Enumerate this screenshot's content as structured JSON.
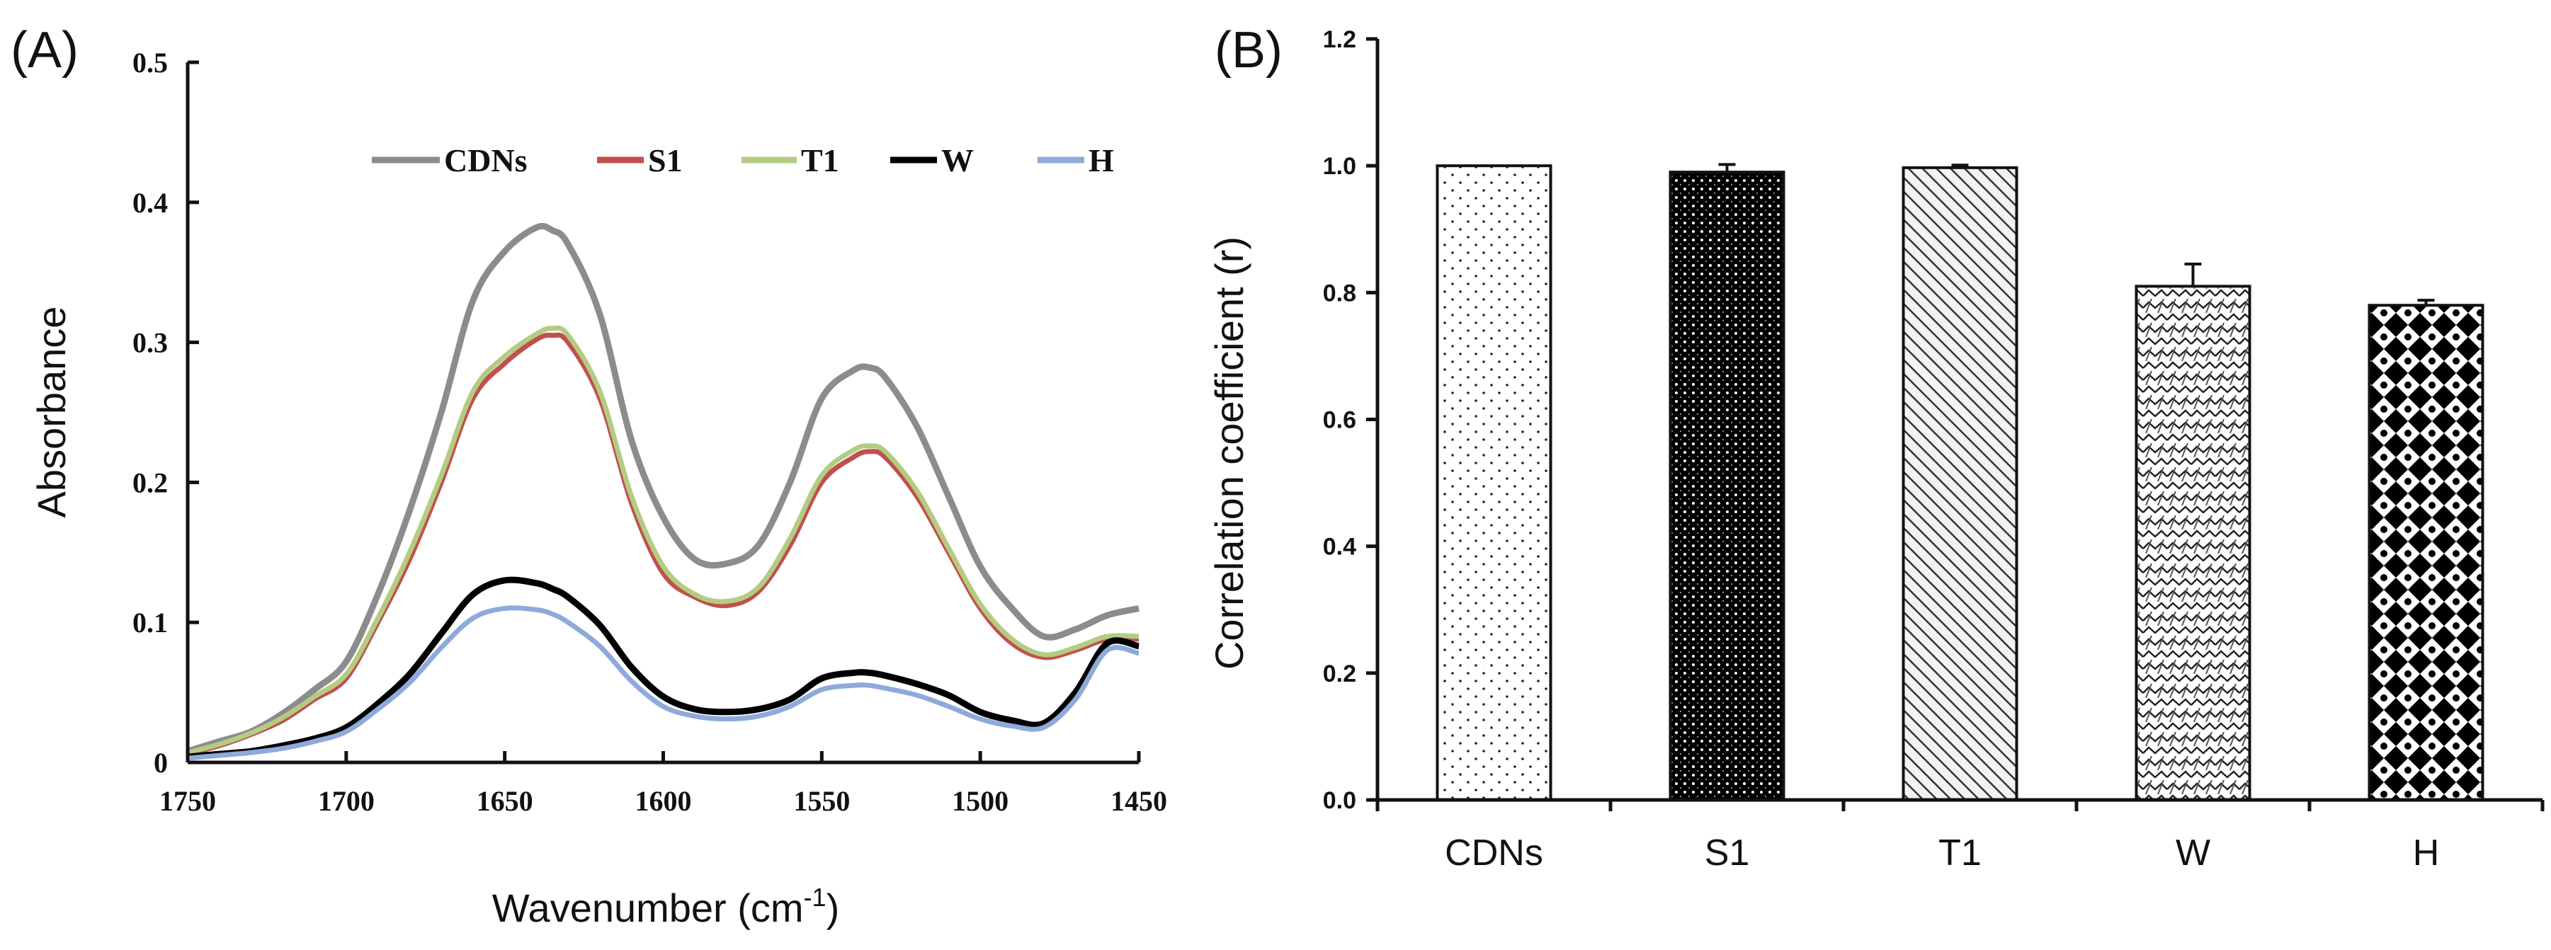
{
  "chart_data": [
    {
      "panel": "(A)",
      "type": "line",
      "xlabel": "Wavenumber (cm",
      "xlabel_sup": "-1",
      "xlabel_end": ")",
      "ylabel": "Absorbance",
      "xlim": [
        1750,
        1450
      ],
      "ylim": [
        0,
        0.5
      ],
      "xticks": [
        1750,
        1700,
        1650,
        1600,
        1550,
        1500,
        1450
      ],
      "xtick_labels": [
        "1750",
        "1700",
        "1650",
        "1600",
        "1550",
        "1500",
        "1450"
      ],
      "yticks": [
        0,
        0.1,
        0.2,
        0.3,
        0.4,
        0.5
      ],
      "ytick_labels": [
        "0",
        "0.1",
        "0.2",
        "0.3",
        "0.4",
        "0.5"
      ],
      "legend_position": "top",
      "x": [
        1750,
        1740,
        1730,
        1720,
        1710,
        1700,
        1690,
        1680,
        1670,
        1660,
        1650,
        1640,
        1635,
        1630,
        1620,
        1610,
        1600,
        1590,
        1580,
        1570,
        1560,
        1550,
        1540,
        1535,
        1530,
        1520,
        1510,
        1500,
        1490,
        1480,
        1470,
        1460,
        1450
      ],
      "series": [
        {
          "name": "CDNs",
          "color": "#8c8c8c",
          "values": [
            0.008,
            0.015,
            0.022,
            0.035,
            0.052,
            0.072,
            0.12,
            0.18,
            0.25,
            0.33,
            0.365,
            0.382,
            0.38,
            0.37,
            0.32,
            0.23,
            0.175,
            0.145,
            0.142,
            0.155,
            0.2,
            0.26,
            0.28,
            0.282,
            0.275,
            0.24,
            0.19,
            0.14,
            0.11,
            0.09,
            0.095,
            0.105,
            0.11
          ]
        },
        {
          "name": "S1",
          "color": "#c0504d",
          "values": [
            0.006,
            0.012,
            0.02,
            0.03,
            0.045,
            0.06,
            0.1,
            0.145,
            0.2,
            0.26,
            0.285,
            0.302,
            0.305,
            0.3,
            0.26,
            0.185,
            0.135,
            0.118,
            0.112,
            0.122,
            0.155,
            0.2,
            0.218,
            0.222,
            0.218,
            0.19,
            0.15,
            0.11,
            0.085,
            0.075,
            0.08,
            0.088,
            0.088
          ]
        },
        {
          "name": "T1",
          "color": "#b3cc82",
          "values": [
            0.007,
            0.013,
            0.021,
            0.032,
            0.047,
            0.063,
            0.103,
            0.15,
            0.205,
            0.265,
            0.29,
            0.306,
            0.31,
            0.305,
            0.265,
            0.19,
            0.14,
            0.12,
            0.115,
            0.125,
            0.16,
            0.205,
            0.223,
            0.226,
            0.222,
            0.194,
            0.153,
            0.113,
            0.088,
            0.077,
            0.082,
            0.09,
            0.09
          ]
        },
        {
          "name": "W",
          "color": "#000000",
          "values": [
            0.004,
            0.006,
            0.008,
            0.012,
            0.017,
            0.025,
            0.042,
            0.063,
            0.092,
            0.12,
            0.13,
            0.128,
            0.124,
            0.118,
            0.098,
            0.068,
            0.047,
            0.038,
            0.036,
            0.038,
            0.045,
            0.06,
            0.064,
            0.064,
            0.062,
            0.056,
            0.048,
            0.036,
            0.03,
            0.028,
            0.05,
            0.085,
            0.083
          ]
        },
        {
          "name": "H",
          "color": "#8eaadb",
          "values": [
            0.003,
            0.005,
            0.007,
            0.01,
            0.015,
            0.022,
            0.038,
            0.057,
            0.082,
            0.103,
            0.11,
            0.109,
            0.106,
            0.1,
            0.083,
            0.058,
            0.04,
            0.033,
            0.031,
            0.033,
            0.04,
            0.052,
            0.055,
            0.055,
            0.053,
            0.048,
            0.04,
            0.031,
            0.026,
            0.025,
            0.045,
            0.08,
            0.078
          ]
        }
      ]
    },
    {
      "panel": "(B)",
      "type": "bar",
      "ylabel": "Correlation coefficient (r)",
      "xlabel": "",
      "ylim": [
        0,
        1.2
      ],
      "yticks": [
        0,
        0.2,
        0.4,
        0.6,
        0.8,
        1.0,
        1.2
      ],
      "ytick_labels": [
        "0.0",
        "0.2",
        "0.4",
        "0.6",
        "0.8",
        "1.0",
        "1.2"
      ],
      "categories": [
        "CDNs",
        "S1",
        "T1",
        "W",
        "H"
      ],
      "values": [
        1.0,
        0.99,
        0.997,
        0.81,
        0.78
      ],
      "errors": [
        0.0,
        0.012,
        0.004,
        0.035,
        0.008
      ],
      "patterns": [
        "sparse-dots",
        "dense-dots",
        "diagonal-hatch",
        "wave-hatch",
        "checker-diamond"
      ]
    }
  ]
}
